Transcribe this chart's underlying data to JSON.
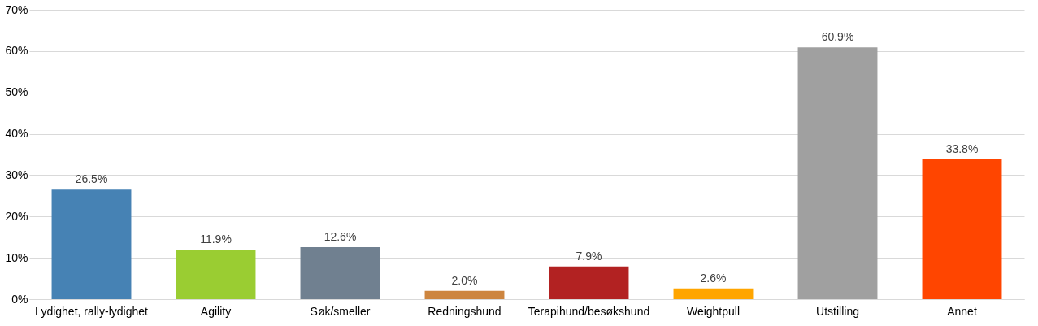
{
  "chart_data": {
    "type": "bar",
    "categories": [
      "Lydighet, rally-lydighet",
      "Agility",
      "Søk/smeller",
      "Redningshund",
      "Terapihund/besøkshund",
      "Weightpull",
      "Utstilling",
      "Annet"
    ],
    "values": [
      26.5,
      11.9,
      12.6,
      2.0,
      7.9,
      2.6,
      60.9,
      33.8
    ],
    "value_labels": [
      "26.5%",
      "11.9%",
      "12.6%",
      "2.0%",
      "7.9%",
      "2.6%",
      "60.9%",
      "33.8%"
    ],
    "colors": [
      "#4682b4",
      "#9acd32",
      "#708090",
      "#cd853f",
      "#b22222",
      "#ffa500",
      "#a0a0a0",
      "#ff4500"
    ],
    "ylim": [
      0,
      70
    ],
    "yticks": [
      {
        "value": 0,
        "label": "0%"
      },
      {
        "value": 10,
        "label": "10%"
      },
      {
        "value": 20,
        "label": "20%"
      },
      {
        "value": 30,
        "label": "30%"
      },
      {
        "value": 40,
        "label": "40%"
      },
      {
        "value": 50,
        "label": "50%"
      },
      {
        "value": 60,
        "label": "60%"
      },
      {
        "value": 70,
        "label": "70%"
      }
    ],
    "grid": "y",
    "legend": false
  }
}
